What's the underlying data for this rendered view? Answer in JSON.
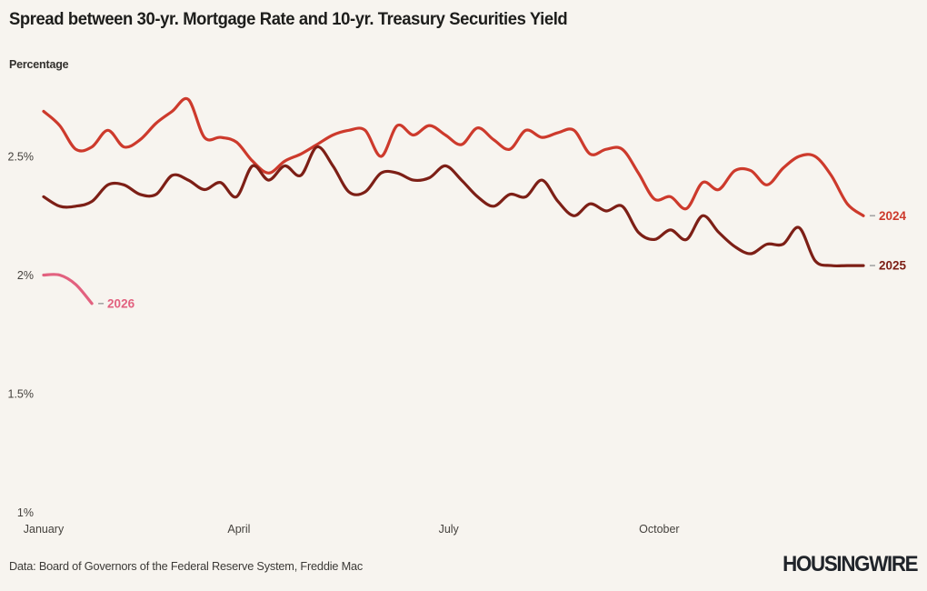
{
  "header": {
    "title": "Spread between 30-yr. Mortgage Rate and 10-yr. Treasury Securities Yield",
    "unit_label": "Percentage"
  },
  "footer": {
    "source": "Data: Board of Governors of the Federal Reserve System, Freddie Mac",
    "brand": "HOUSINGWIRE"
  },
  "colors": {
    "background": "#f7f4ef",
    "axis_text": "#45423e",
    "title_text": "#1d1d1b",
    "end_label_dash": "#a5a5a5",
    "series_2024": "#cd3a2c",
    "series_2025": "#7d1f16",
    "series_2026": "#e2617f"
  },
  "chart_data": {
    "type": "line",
    "title": "Spread between 30-yr. Mortgage Rate and 10-yr. Treasury Securities Yield",
    "ylabel": "Percentage",
    "xlabel": "",
    "grid": false,
    "legend_position": "line-end-labels",
    "x_unit": "weeks since start of January",
    "x_tick_labels": [
      "January",
      "April",
      "July",
      "October"
    ],
    "x_tick_weeks": [
      0,
      12.15,
      25.2,
      38.3
    ],
    "y_tick_labels": [
      "2.5%",
      "2%",
      "1.5%",
      "1%"
    ],
    "y_ticks": [
      2.5,
      2.0,
      1.5,
      1.0
    ],
    "ylim": [
      0.95,
      2.78
    ],
    "series": [
      {
        "name": "2024",
        "color": "#cd3a2c",
        "values": [
          2.69,
          2.63,
          2.53,
          2.54,
          2.61,
          2.54,
          2.57,
          2.64,
          2.69,
          2.74,
          2.58,
          2.58,
          2.56,
          2.48,
          2.43,
          2.48,
          2.51,
          2.55,
          2.59,
          2.61,
          2.61,
          2.5,
          2.63,
          2.59,
          2.63,
          2.59,
          2.55,
          2.62,
          2.57,
          2.53,
          2.61,
          2.58,
          2.6,
          2.61,
          2.51,
          2.53,
          2.53,
          2.43,
          2.32,
          2.33,
          2.28,
          2.39,
          2.36,
          2.44,
          2.44,
          2.38,
          2.45,
          2.5,
          2.5,
          2.42,
          2.3,
          2.25
        ]
      },
      {
        "name": "2025",
        "color": "#7d1f16",
        "values": [
          2.33,
          2.29,
          2.29,
          2.31,
          2.38,
          2.38,
          2.34,
          2.34,
          2.42,
          2.4,
          2.36,
          2.39,
          2.33,
          2.46,
          2.4,
          2.46,
          2.42,
          2.54,
          2.46,
          2.35,
          2.35,
          2.43,
          2.43,
          2.4,
          2.41,
          2.46,
          2.4,
          2.33,
          2.29,
          2.34,
          2.33,
          2.4,
          2.31,
          2.25,
          2.3,
          2.27,
          2.29,
          2.18,
          2.15,
          2.19,
          2.15,
          2.25,
          2.18,
          2.12,
          2.09,
          2.13,
          2.13,
          2.2,
          2.06,
          2.04,
          2.04,
          2.04
        ]
      },
      {
        "name": "2026",
        "color": "#e2617f",
        "values": [
          2.0,
          2.0,
          1.96,
          1.88
        ]
      }
    ]
  }
}
